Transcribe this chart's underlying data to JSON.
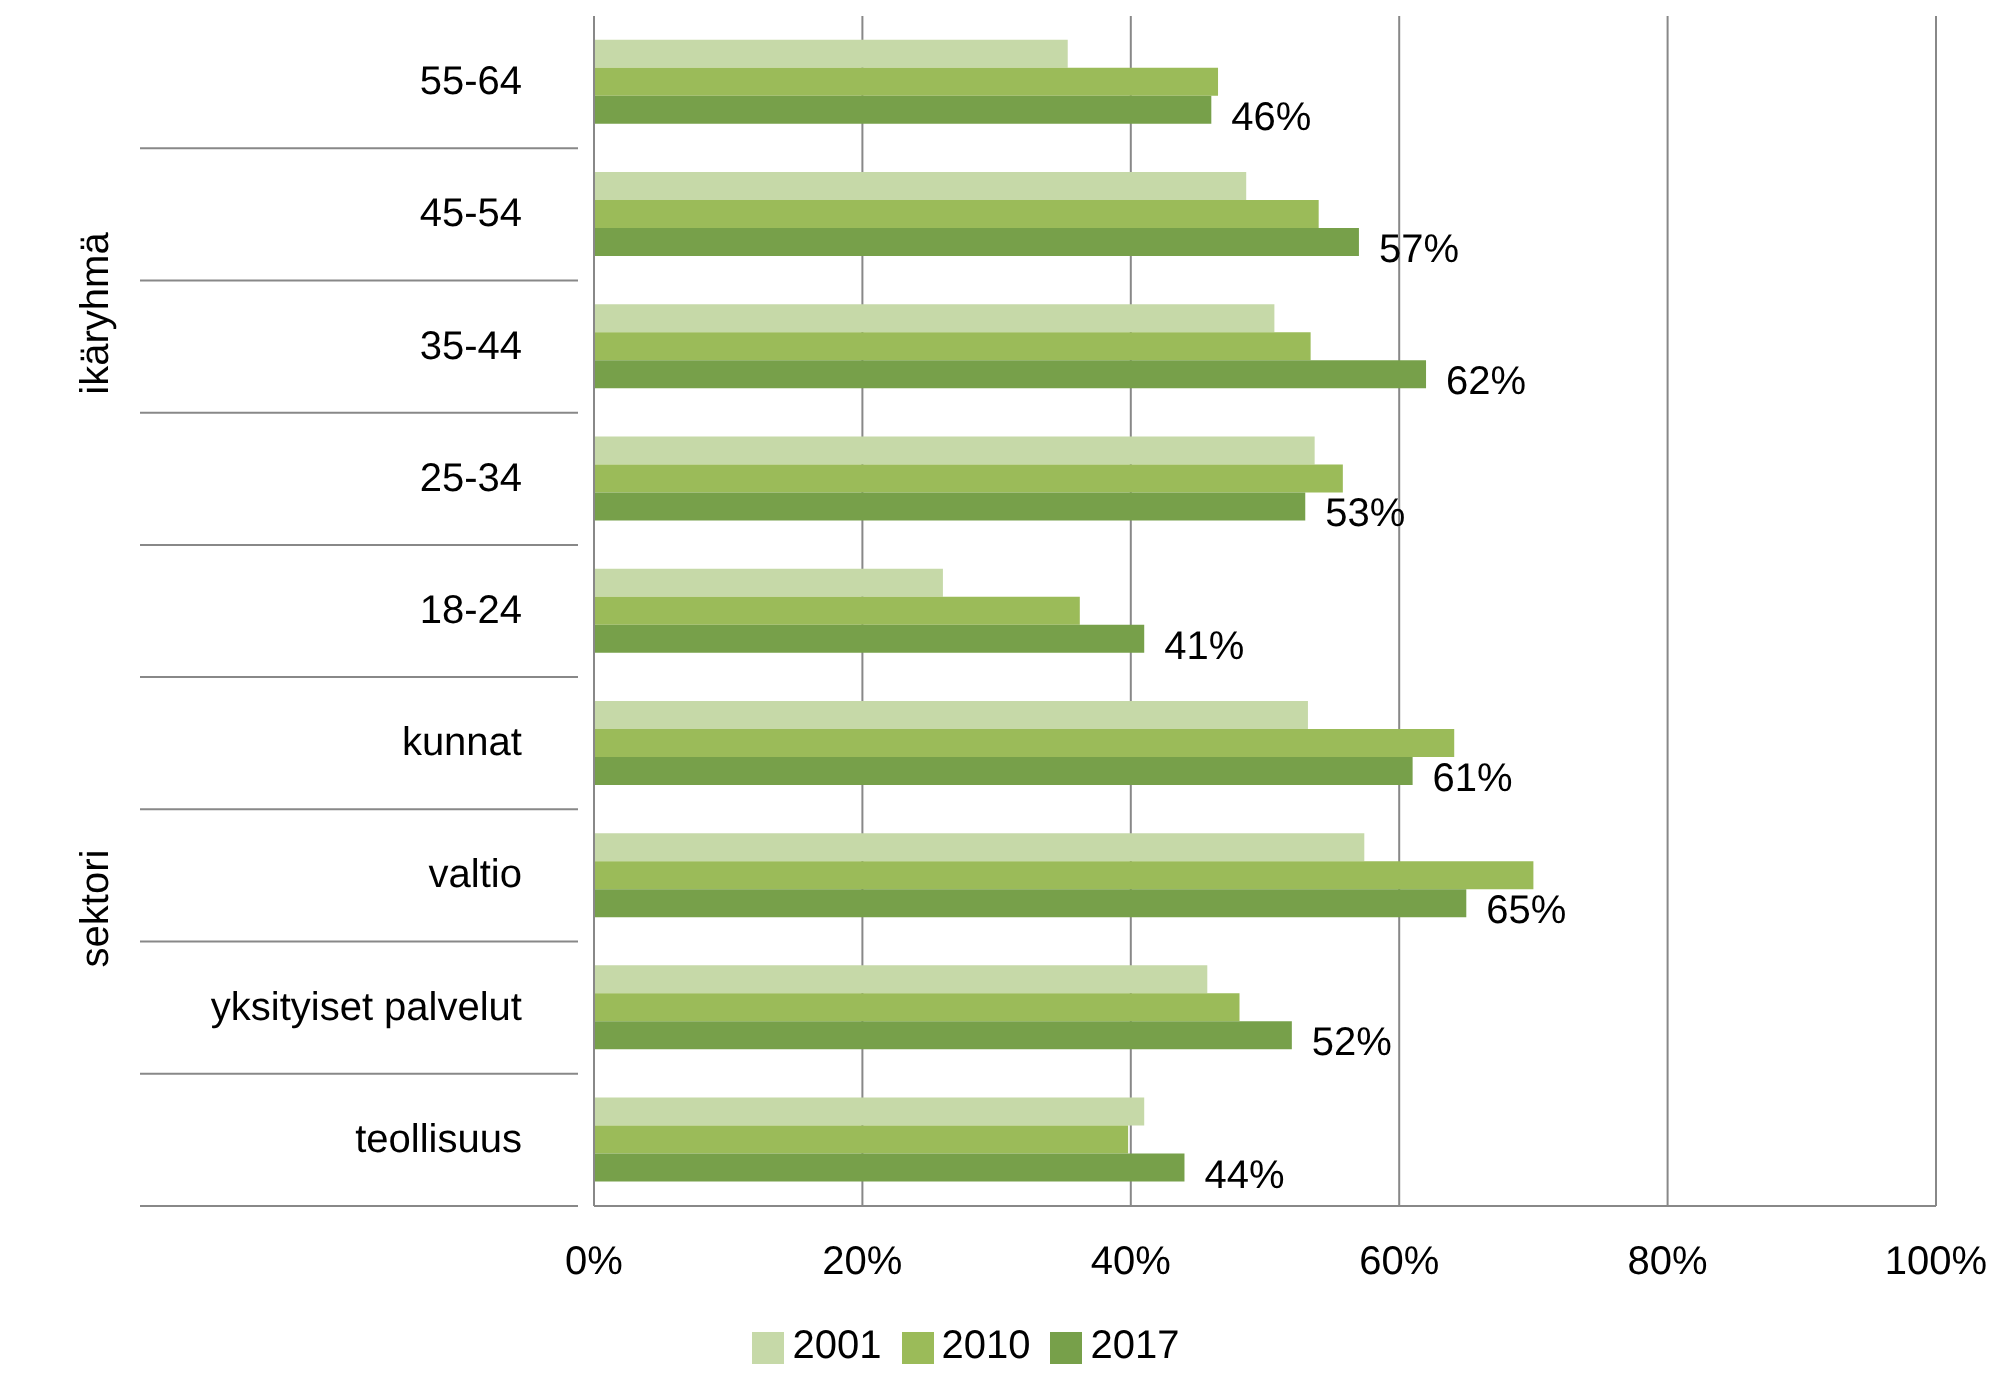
{
  "chart_data": {
    "type": "bar",
    "orientation": "horizontal",
    "categories": [
      "55-64",
      "45-54",
      "35-44",
      "25-34",
      "18-24",
      "kunnat",
      "valtio",
      "yksityiset palvelut",
      "teollisuus"
    ],
    "series": [
      {
        "name": "2001",
        "color": "#c6d9a8",
        "values": [
          35.3,
          48.6,
          50.7,
          53.7,
          26,
          53.2,
          57.4,
          45.7,
          41
        ]
      },
      {
        "name": "2010",
        "color": "#9bbb59",
        "values": [
          46.5,
          54,
          53.4,
          55.8,
          36.2,
          64.1,
          70,
          48.1,
          39.8
        ]
      },
      {
        "name": "2017",
        "color": "#77a04a",
        "values": [
          46,
          57,
          62,
          53,
          41,
          61,
          65,
          52,
          44
        ],
        "value_labels": [
          "46%",
          "57%",
          "62%",
          "53%",
          "41%",
          "61%",
          "65%",
          "52%",
          "44%"
        ]
      }
    ],
    "xlim": [
      0,
      100
    ],
    "xticks": [
      {
        "value": 0,
        "label": "0%"
      },
      {
        "value": 20,
        "label": "20%"
      },
      {
        "value": 40,
        "label": "40%"
      },
      {
        "value": 60,
        "label": "60%"
      },
      {
        "value": 80,
        "label": "80%"
      },
      {
        "value": 100,
        "label": "100%"
      }
    ],
    "grid": "x",
    "legend": "bottom",
    "annotations": [
      "ikäryhmä",
      "sektori"
    ]
  }
}
